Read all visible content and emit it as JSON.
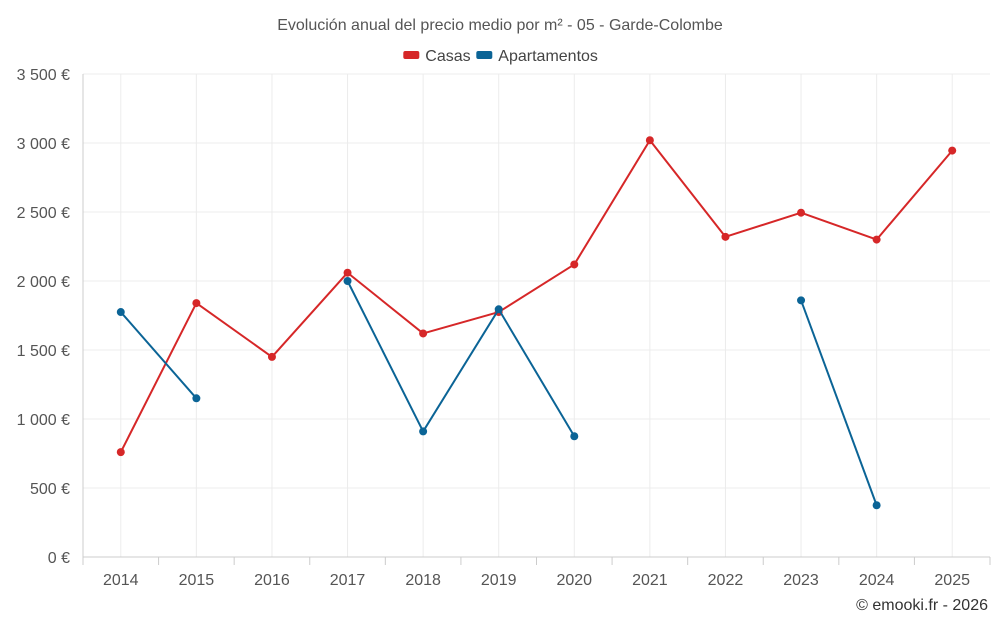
{
  "chart_data": {
    "type": "line",
    "title": "Evolución anual del precio medio por m² - 05 - Garde-Colombe",
    "categories": [
      "2014",
      "2015",
      "2016",
      "2017",
      "2018",
      "2019",
      "2020",
      "2021",
      "2022",
      "2023",
      "2024",
      "2025"
    ],
    "series": [
      {
        "name": "Casas",
        "color": "#d62728",
        "values": [
          760,
          1840,
          1450,
          2060,
          1620,
          1775,
          2120,
          3020,
          2320,
          2495,
          2300,
          2945
        ]
      },
      {
        "name": "Apartamentos",
        "color": "#0b6496",
        "values": [
          1775,
          1150,
          null,
          2000,
          910,
          1795,
          875,
          null,
          null,
          1860,
          375,
          null
        ]
      }
    ],
    "ylim": [
      0,
      3500
    ],
    "yticks": [
      0,
      500,
      1000,
      1500,
      2000,
      2500,
      3000,
      3500
    ],
    "ytick_labels": [
      "0 €",
      "500 €",
      "1 000 €",
      "1 500 €",
      "2 000 €",
      "2 500 €",
      "3 000 €",
      "3 500 €"
    ],
    "xlabel": "",
    "ylabel": "",
    "legend_position": "top-center",
    "grid": true,
    "credit": "© emooki.fr - 2026"
  }
}
